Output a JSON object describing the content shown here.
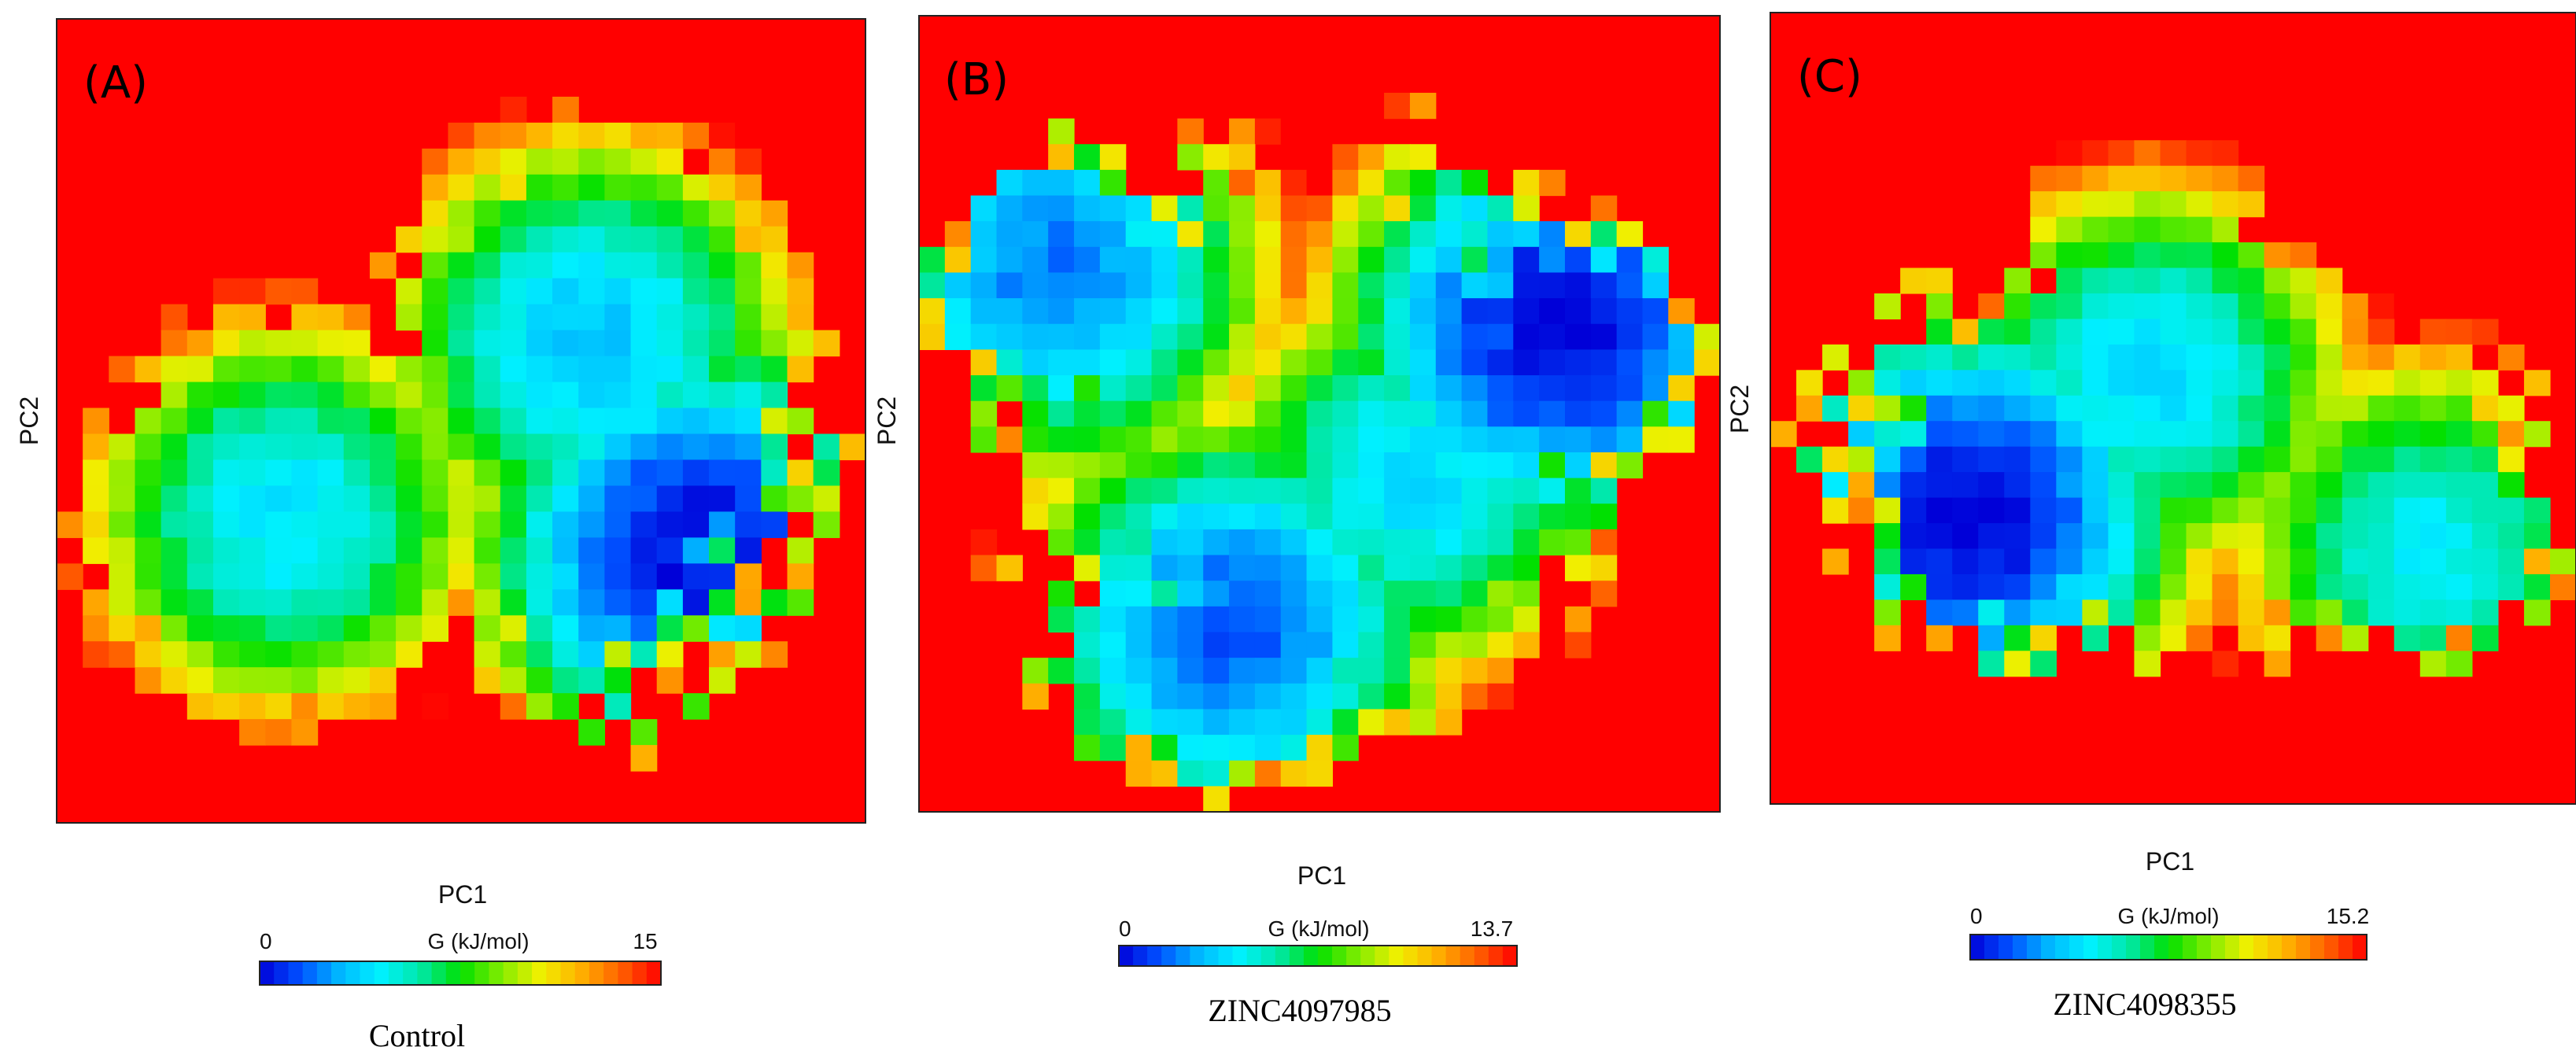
{
  "colorscale": {
    "stops": [
      "#0000d8",
      "#0050ff",
      "#00b8ff",
      "#00f0ff",
      "#00e8a8",
      "#00e000",
      "#80ec00",
      "#f0f000",
      "#ffb000",
      "#ff6000",
      "#ff0000"
    ]
  },
  "chart_data": [
    {
      "type": "heatmap",
      "panel_label": "(A)",
      "xlabel": "PC1",
      "ylabel": "PC2",
      "colorbar_label": "G (kJ/mol)",
      "colorbar_min_label": "0",
      "colorbar_max_label": "15",
      "vmin": 0,
      "vmax": 15,
      "caption": "Control",
      "grid": [
        31,
        31
      ],
      "minima": [
        {
          "x": 0.8,
          "y": 0.67,
          "depth": 0
        },
        {
          "x": 0.66,
          "y": 0.4,
          "depth": 3.4
        },
        {
          "x": 0.28,
          "y": 0.62,
          "depth": 4.2
        }
      ]
    },
    {
      "type": "heatmap",
      "panel_label": "(B)",
      "xlabel": "PC1",
      "ylabel": "PC2",
      "colorbar_label": "G (kJ/mol)",
      "colorbar_min_label": "0",
      "colorbar_max_label": "13.7",
      "vmin": 0,
      "vmax": 13.7,
      "caption": "ZINC4097985",
      "grid": [
        31,
        31
      ],
      "minima": [
        {
          "x": 0.8,
          "y": 0.39,
          "depth": 0
        },
        {
          "x": 0.39,
          "y": 0.77,
          "depth": 1.4
        },
        {
          "x": 0.17,
          "y": 0.32,
          "depth": 1.9
        },
        {
          "x": 0.62,
          "y": 0.58,
          "depth": 3.6
        }
      ]
    },
    {
      "type": "heatmap",
      "panel_label": "(C)",
      "xlabel": "PC1",
      "ylabel": "PC2",
      "colorbar_label": "G (kJ/mol)",
      "colorbar_min_label": "0",
      "colorbar_max_label": "15.2",
      "vmin": 0,
      "vmax": 15.2,
      "caption": "ZINC4098355",
      "grid": [
        31,
        31
      ],
      "minima": [
        {
          "x": 0.24,
          "y": 0.64,
          "depth": 0
        },
        {
          "x": 0.47,
          "y": 0.46,
          "depth": 4.0
        },
        {
          "x": 0.82,
          "y": 0.68,
          "depth": 4.6
        }
      ]
    }
  ]
}
